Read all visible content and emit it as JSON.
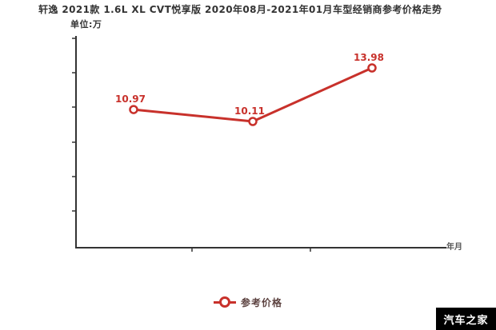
{
  "header": {
    "title": "轩逸 2021款 1.6L XL CVT悦享版 2020年08月-2021年01月车型经销商参考价格走势",
    "unit_label": "单位:万"
  },
  "chart_data": {
    "type": "line",
    "title": "轩逸 2021款 1.6L XL CVT悦享版 2020年08月-2021年01月车型经销商参考价格走势",
    "unit_label": "单位:万",
    "xlabel": "年月",
    "ylabel": "",
    "x_tick_labels": [],
    "y_tick_labels": [],
    "grid": false,
    "legend_position": "bottom-center",
    "legend": [
      {
        "label": "参考价格",
        "marker": "donut-circle",
        "color": "#c8312b"
      }
    ],
    "series": [
      {
        "name": "参考价格",
        "color": "#c8312b",
        "values": [
          10.97,
          10.11,
          13.98
        ],
        "point_labels": [
          "10.97",
          "10.11",
          "13.98"
        ]
      }
    ]
  },
  "footer": {
    "brand": "汽车之家",
    "brand_bg": "#000000",
    "brand_color": "#ffffff"
  },
  "colors": {
    "accent": "#c8312b",
    "axis": "#333333",
    "title_text": "#333333",
    "xlabel_text": "#555555"
  }
}
